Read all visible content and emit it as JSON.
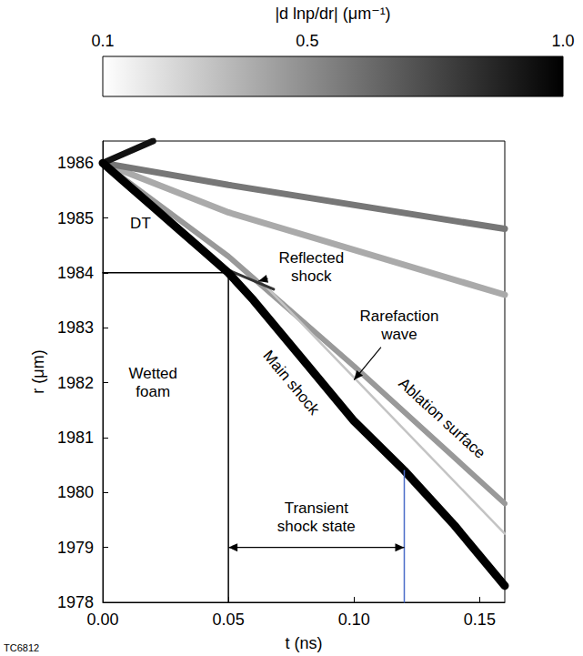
{
  "chart_data": {
    "type": "line",
    "xlabel": "t (ns)",
    "ylabel": "r (μm)",
    "xlim": [
      0,
      0.16
    ],
    "xticks": [
      {
        "value": 0,
        "label": "0.00"
      },
      0.05,
      {
        "value": 0.1,
        "label": "0.10"
      },
      0.15
    ],
    "ylim": [
      1978,
      1986.4
    ],
    "yticks": [
      1978,
      1979,
      1980,
      1981,
      1982,
      1983,
      1984,
      1985,
      1986
    ],
    "grid": false,
    "series": [
      {
        "color": "#aaaaaa",
        "marker": "none",
        "line_style": "solid",
        "x": [
          0,
          0.05,
          0.16
        ],
        "values": [
          1986,
          1985.1,
          1983.6
        ]
      },
      {
        "color": "#777777",
        "marker": "none",
        "line_style": "solid",
        "x": [
          0,
          0.05,
          0.16
        ],
        "values": [
          1986,
          1985.6,
          1984.8
        ]
      },
      {
        "color": "#111111",
        "marker": "none",
        "line_style": "solid",
        "x": [
          0,
          0.02
        ],
        "values": [
          1986,
          1986.4
        ]
      },
      {
        "name": "Ablation surface",
        "color": "#999999",
        "marker": "none",
        "line_style": "solid",
        "x": [
          0,
          0.05,
          0.1,
          0.16
        ],
        "values": [
          1986,
          1984.3,
          1982.3,
          1979.8
        ]
      },
      {
        "name": "Rarefaction wave",
        "color": "#c4c4c4",
        "marker": "none",
        "line_style": "solid",
        "x": [
          0.065,
          0.16
        ],
        "values": [
          1983.75,
          1979.25
        ]
      },
      {
        "name": "Reflected shock",
        "color": "#333333",
        "marker": "none",
        "line_style": "solid",
        "x": [
          0.05,
          0.068
        ],
        "values": [
          1984.05,
          1983.7
        ]
      },
      {
        "name": "Main shock",
        "color": "#000000",
        "marker": "none",
        "line_style": "solid",
        "x": [
          0,
          0.01,
          0.02,
          0.03,
          0.04,
          0.05,
          0.06,
          0.08,
          0.1,
          0.12,
          0.14,
          0.16
        ],
        "values": [
          1986,
          1985.6,
          1985.2,
          1984.8,
          1984.4,
          1984.0,
          1983.5,
          1982.4,
          1981.3,
          1980.4,
          1979.4,
          1978.3
        ]
      },
      {
        "color": "#000000",
        "marker": "none",
        "line_style": "solid",
        "x": [
          0,
          0.05,
          0.05
        ],
        "values": [
          1984,
          1984,
          1978
        ]
      },
      {
        "color": "#4a6cc8",
        "marker": "none",
        "line_style": "solid",
        "x": [
          0.12,
          0.12
        ],
        "values": [
          1978,
          1980.4
        ]
      }
    ],
    "annotations": [
      {
        "text": "DT",
        "x": 0.015,
        "y": 1984.9
      },
      {
        "text": "Wetted foam",
        "x": 0.02,
        "y": 1982.0
      },
      {
        "text": "Reflected shock",
        "x": 0.083,
        "y": 1984.1,
        "arrow_to": [
          0.062,
          1983.85
        ]
      },
      {
        "text": "Rarefaction wave",
        "x": 0.118,
        "y": 1983.05,
        "arrow_to": [
          0.1,
          1982.05
        ]
      },
      {
        "text": "Main shock",
        "x": 0.075,
        "y": 1982.0
      },
      {
        "text": "Ablation surface",
        "x": 0.135,
        "y": 1981.35
      },
      {
        "text": "Transient shock state",
        "x": 0.085,
        "y": 1979.55,
        "bracket": {
          "x": [
            0.05,
            0.12
          ],
          "y": 1979.0
        }
      }
    ],
    "colorbar": {
      "label": "|d lnp/dr| (μm⁻¹)",
      "range": [
        0.1,
        1.0
      ],
      "ticks": [
        0.1,
        0.5,
        {
          "value": 1.0,
          "label": "1.0"
        }
      ]
    },
    "figure_id": "TC6812"
  }
}
